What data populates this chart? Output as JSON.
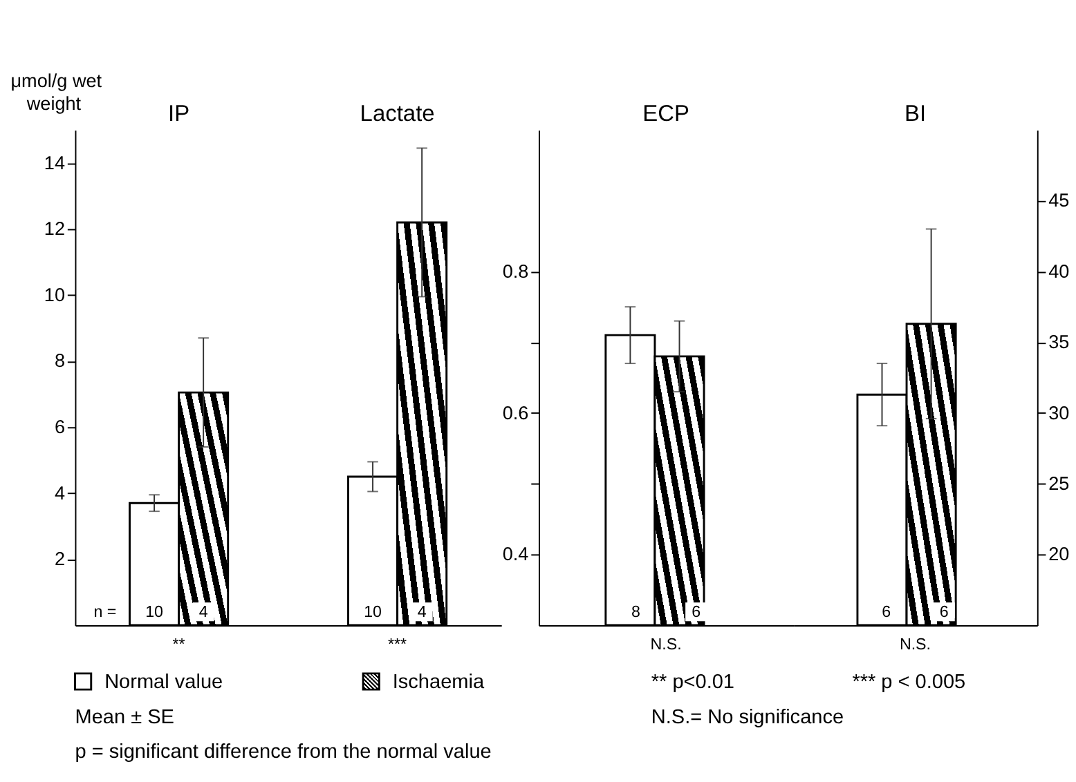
{
  "chart_data": [
    {
      "type": "bar",
      "ylabel": "μmol/g wet weight",
      "categories": [
        "IP",
        "Lactate"
      ],
      "series": [
        {
          "name": "Normal value",
          "color": "#ffffff",
          "values": [
            3.7,
            4.5
          ],
          "errors": [
            0.25,
            0.45
          ]
        },
        {
          "name": "Ischaemia",
          "color": "#000000",
          "values": [
            7.05,
            12.2
          ],
          "errors": [
            1.65,
            2.25
          ]
        }
      ],
      "ylim": [
        0,
        15
      ],
      "yticks": [
        2,
        4,
        6,
        8,
        10,
        12,
        14
      ],
      "legend": "bottom",
      "annotations": [
        "n =",
        "10",
        "4",
        "10",
        "4",
        "**",
        "***",
        "** p<0.01",
        "*** p < 0.005",
        "Mean ± SE",
        "N.S.= No significance",
        "p = significant difference from the normal value"
      ]
    },
    {
      "type": "bar",
      "categories": [
        "ECP"
      ],
      "series": [
        {
          "color": "#ffffff",
          "values": [
            0.71
          ],
          "errors": [
            0.04
          ]
        },
        {
          "color": "#000000",
          "values": [
            0.68
          ],
          "errors": [
            0.05
          ]
        }
      ],
      "ylim": [
        0.3,
        1.0
      ],
      "yticks": [
        0.4,
        {
          "value": 0.5,
          "label": null
        },
        0.6,
        {
          "value": 0.7,
          "label": null
        },
        0.8
      ],
      "annotations": [
        "8",
        "6",
        "N.S."
      ]
    },
    {
      "type": "bar",
      "categories": [
        "BI"
      ],
      "series": [
        {
          "color": "#ffffff",
          "values": [
            31.3
          ],
          "errors": [
            2.2
          ],
          "axis": "y2"
        },
        {
          "color": "#000000",
          "values": [
            36.3
          ],
          "errors": [
            6.7
          ],
          "axis": "y2"
        }
      ],
      "y2lim": [
        15,
        50
      ],
      "y2ticks": [
        20,
        25,
        30,
        35,
        40,
        45
      ],
      "annotations": [
        "6",
        "6",
        "N.S."
      ]
    }
  ]
}
